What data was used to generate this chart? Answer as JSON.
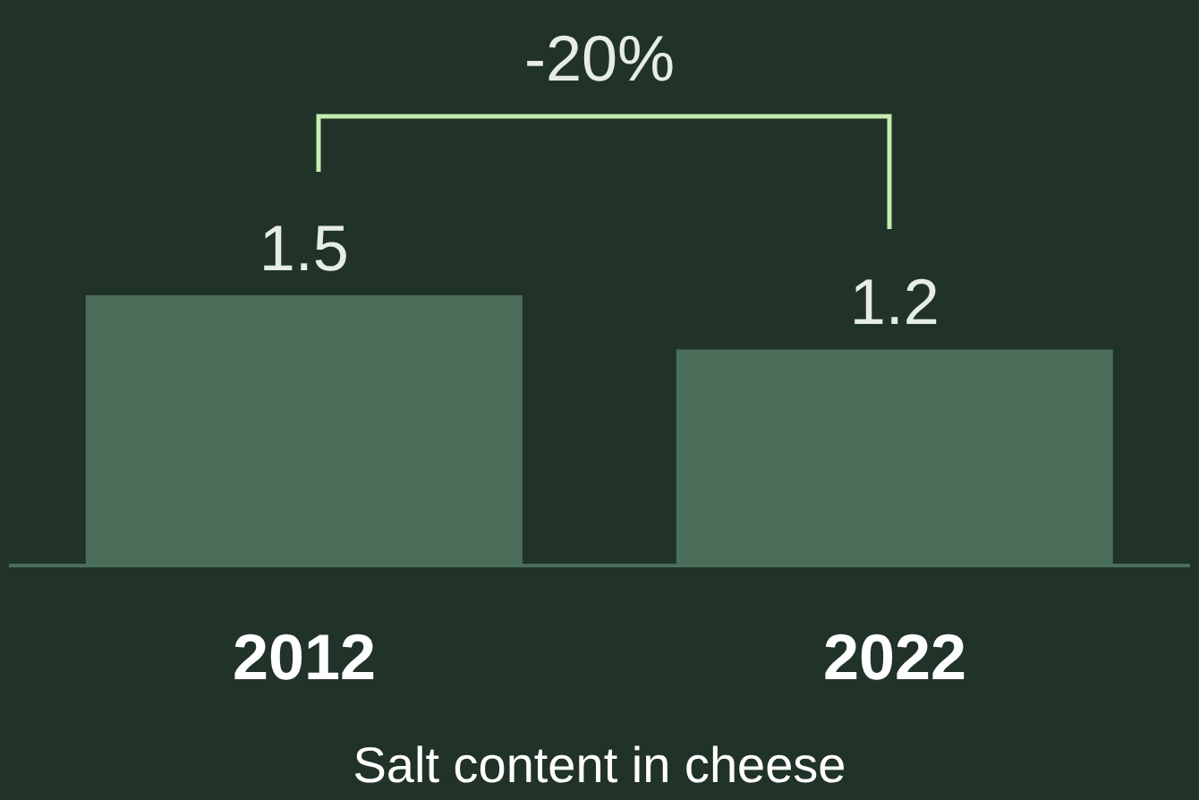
{
  "chart_data": {
    "type": "bar",
    "categories": [
      "2012",
      "2022"
    ],
    "values": [
      1.5,
      1.2
    ],
    "color": "#4a6e5a",
    "data_labels": true,
    "xlabel": "Salt content in cheese",
    "annotations": [
      "-20%"
    ],
    "grid": false,
    "legend": false
  }
}
